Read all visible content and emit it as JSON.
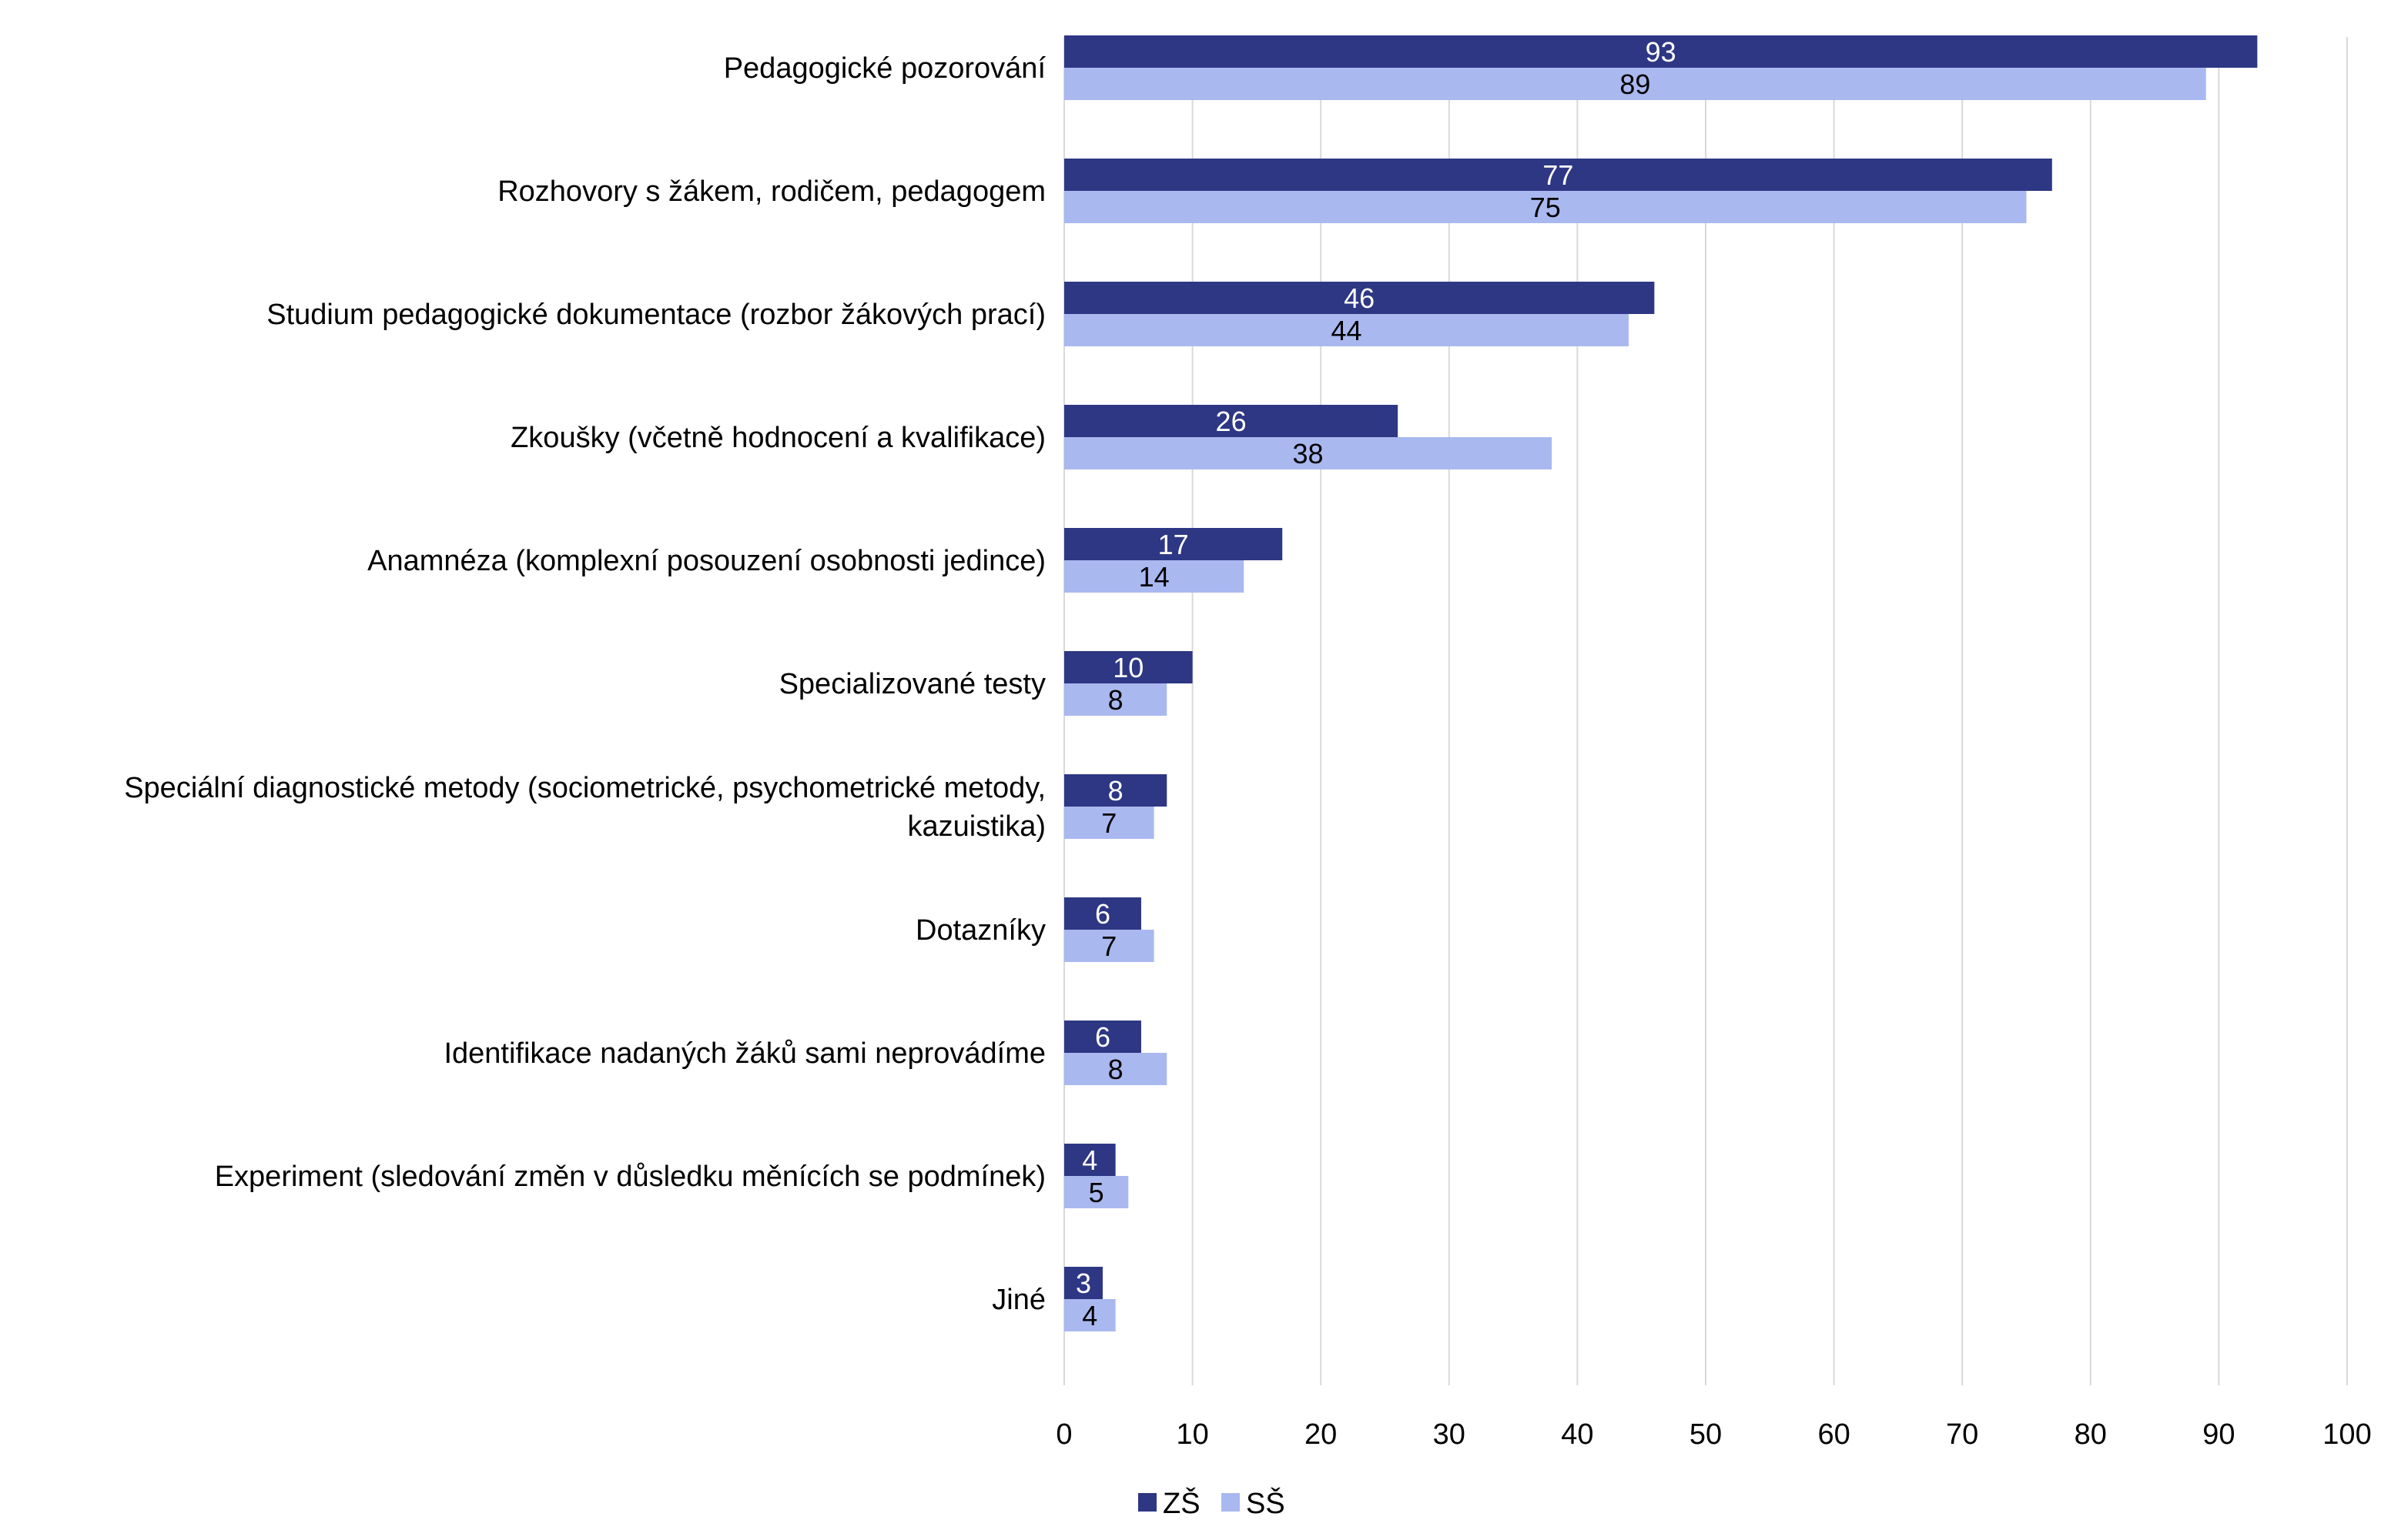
{
  "chart_data": {
    "type": "bar",
    "orientation": "horizontal",
    "title": "",
    "xlabel": "",
    "ylabel": "",
    "xlim": [
      0,
      100
    ],
    "xticks": [
      0,
      10,
      20,
      30,
      40,
      50,
      60,
      70,
      80,
      90,
      100
    ],
    "grid": true,
    "legend_position": "bottom-center",
    "categories": [
      "Pedagogické pozorování",
      "Rozhovory s žákem, rodičem, pedagogem",
      "Studium pedagogické dokumentace (rozbor žákových prací)",
      "Zkoušky (včetně hodnocení a kvalifikace)",
      "Anamnéza (komplexní posouzení osobnosti jedince)",
      "Specializované testy",
      "Speciální diagnostické metody (sociometrické, psychometrické metody, kazuistika)",
      "Dotazníky",
      "Identifikace nadaných žáků sami neprovádíme",
      "Experiment (sledování změn v důsledku měnících se podmínek)",
      "Jiné"
    ],
    "category_lines": [
      [
        "Pedagogické pozorování"
      ],
      [
        "Rozhovory s žákem, rodičem, pedagogem"
      ],
      [
        "Studium pedagogické dokumentace (rozbor žákových prací)"
      ],
      [
        "Zkoušky (včetně hodnocení a kvalifikace)"
      ],
      [
        "Anamnéza (komplexní posouzení osobnosti jedince)"
      ],
      [
        "Specializované testy"
      ],
      [
        "Speciální diagnostické metody (sociometrické, psychometrické metody,",
        "kazuistika)"
      ],
      [
        "Dotazníky"
      ],
      [
        "Identifikace nadaných žáků sami neprovádíme"
      ],
      [
        "Experiment (sledování změn v důsledku měnících se podmínek)"
      ],
      [
        "Jiné"
      ]
    ],
    "series": [
      {
        "name": "ZŠ",
        "color": "#2e3784",
        "label_color": "#ffffff",
        "values": [
          93,
          77,
          46,
          26,
          17,
          10,
          8,
          6,
          6,
          4,
          3
        ]
      },
      {
        "name": "SŠ",
        "color": "#aab8f0",
        "label_color": "#000000",
        "values": [
          89,
          75,
          44,
          38,
          14,
          8,
          7,
          7,
          8,
          5,
          4
        ]
      }
    ],
    "grid_color": "#d9d9d9"
  }
}
